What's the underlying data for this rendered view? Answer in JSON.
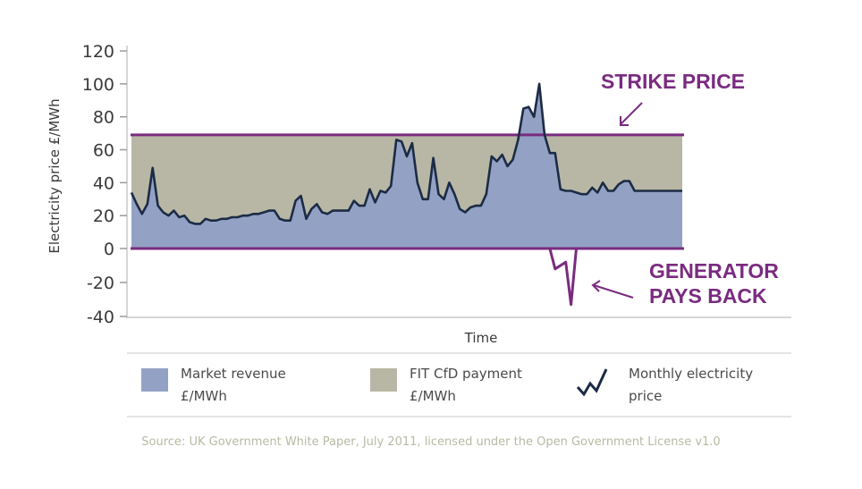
{
  "chart_data": {
    "type": "line",
    "ylabel": "Electricity price £/MWh",
    "xlabel": "Time",
    "ylim": [
      -40,
      120
    ],
    "yticks": [
      120,
      100,
      80,
      60,
      40,
      20,
      0,
      -20,
      -40
    ],
    "strike_price": 69,
    "series": [
      {
        "name": "Monthly electricity price",
        "color": "#1c2b45",
        "x": [
          0,
          1,
          2,
          3,
          4,
          5,
          6,
          7,
          8,
          9,
          10,
          11,
          12,
          13,
          14,
          15,
          16,
          17,
          18,
          19,
          20,
          21,
          22,
          23,
          24,
          25,
          26,
          27,
          28,
          29,
          30,
          31,
          32,
          33,
          34,
          35,
          36,
          37,
          38,
          39,
          40,
          41,
          42,
          43,
          44,
          45,
          46,
          47,
          48,
          49,
          50,
          51,
          52,
          53,
          54,
          55,
          56,
          57,
          58,
          59,
          60,
          61,
          62,
          63,
          64,
          65,
          66,
          67,
          68,
          69,
          70,
          71,
          72,
          73,
          74,
          75,
          76,
          77,
          78,
          79,
          80,
          81,
          82,
          83,
          84,
          85,
          86,
          87,
          88,
          89,
          90,
          91,
          92,
          93,
          94,
          95,
          96,
          97,
          98,
          99,
          100,
          101,
          102,
          103,
          104
        ],
        "y": [
          34,
          27,
          21,
          27,
          49,
          26,
          22,
          20,
          23,
          19,
          20,
          16,
          15,
          15,
          18,
          17,
          17,
          18,
          18,
          19,
          19,
          20,
          20,
          21,
          21,
          22,
          23,
          23,
          18,
          17,
          17,
          29,
          32,
          18,
          24,
          27,
          22,
          21,
          23,
          23,
          23,
          23,
          29,
          26,
          26,
          36,
          28,
          35,
          34,
          38,
          66,
          65,
          56,
          64,
          40,
          30,
          30,
          55,
          33,
          30,
          40,
          33,
          24,
          22,
          25,
          26,
          26,
          33,
          56,
          53,
          57,
          50,
          54,
          66,
          85,
          86,
          80,
          100,
          69,
          58,
          58,
          36,
          35,
          35,
          34,
          33,
          33,
          37,
          34,
          40,
          35,
          35,
          39,
          41,
          41,
          35,
          35,
          35,
          35,
          35,
          35,
          35,
          35,
          35,
          35
        ]
      }
    ],
    "negative_dip": {
      "x": [
        79,
        80,
        81,
        82,
        83,
        84
      ],
      "y": [
        0,
        -12,
        -10,
        -8,
        -33,
        0
      ]
    },
    "annotations": [
      "STRIKE PRICE",
      "GENERATOR PAYS BACK"
    ],
    "legend": [
      {
        "label": "Market revenue £/MWh",
        "color": "#93a1c4",
        "kind": "area"
      },
      {
        "label": "FIT CfD payment £/MWh",
        "color": "#b8b7a5",
        "kind": "area"
      },
      {
        "label": "Monthly electricity price",
        "color": "#1c2b45",
        "kind": "line"
      }
    ]
  },
  "annotation": {
    "strike_price": "STRIKE PRICE",
    "generator_line1": "GENERATOR",
    "generator_line2": "PAYS BACK"
  },
  "legend": {
    "market_revenue_line1": "Market revenue",
    "market_revenue_line2": "£/MWh",
    "fit_cfd_line1": "FIT CfD payment",
    "fit_cfd_line2": "£/MWh",
    "monthly_price_line1": "Monthly electricity",
    "monthly_price_line2": "price"
  },
  "source": "Source: UK Government White Paper, July 2011, licensed under the Open Government License v1.0",
  "colors": {
    "purple": "#7a2b80",
    "navy": "#1c2b45",
    "blue_area": "#93a1c4",
    "khaki_area": "#b8b7a5"
  }
}
